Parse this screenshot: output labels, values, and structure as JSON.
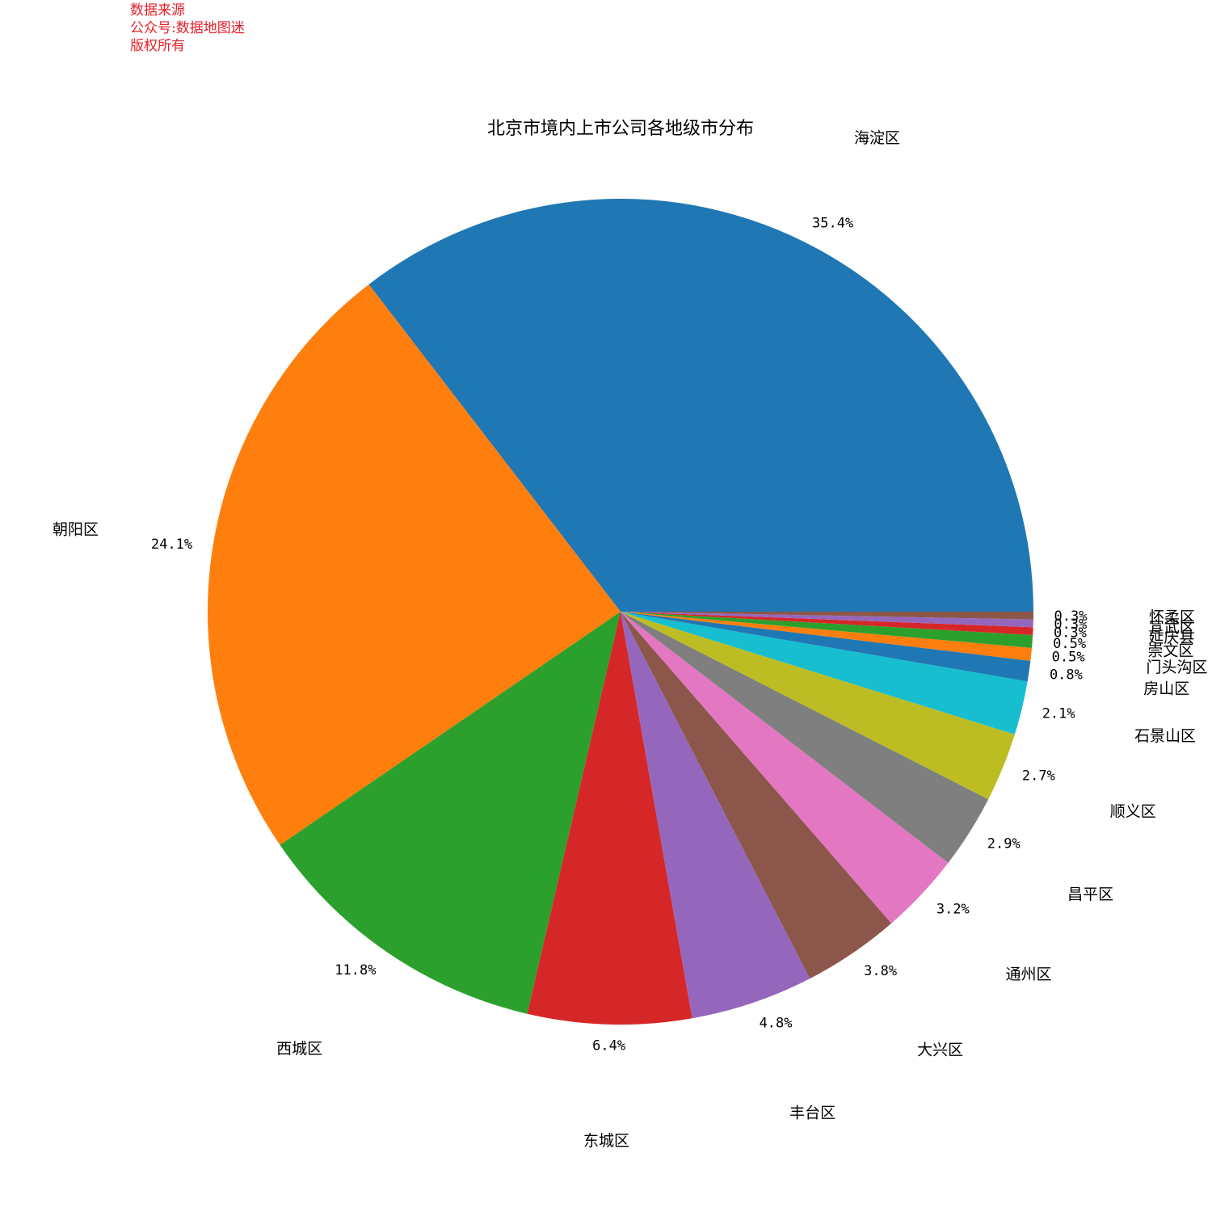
{
  "watermark": {
    "line1": "数据来源",
    "line2": "公众号:数据地图迷",
    "line3": "版权所有"
  },
  "chart_data": {
    "type": "pie",
    "title": "北京市境内上市公司各地级市分布",
    "start_angle_deg": 0,
    "direction": "counterclockwise",
    "categories": [
      "海淀区",
      "朝阳区",
      "西城区",
      "东城区",
      "丰台区",
      "大兴区",
      "通州区",
      "昌平区",
      "顺义区",
      "石景山区",
      "房山区",
      "门头沟区",
      "崇文区",
      "延庆县",
      "宣武区",
      "怀柔区"
    ],
    "values": [
      35.4,
      24.1,
      11.8,
      6.4,
      4.8,
      3.8,
      3.2,
      2.9,
      2.7,
      2.1,
      0.8,
      0.5,
      0.5,
      0.3,
      0.3,
      0.3
    ],
    "percent_labels": [
      "35.4%",
      "24.1%",
      "11.8%",
      "6.4%",
      "4.8%",
      "3.8%",
      "3.2%",
      "2.9%",
      "2.7%",
      "2.1%",
      "0.8%",
      "0.5%",
      "0.5%",
      "0.3%",
      "0.3%",
      "0.3%"
    ],
    "colors": [
      "#1f77b4",
      "#ff7f0e",
      "#2ca02c",
      "#d62728",
      "#9467bd",
      "#8c564b",
      "#e377c2",
      "#7f7f7f",
      "#bcbd22",
      "#17becf",
      "#1f77b4",
      "#ff7f0e",
      "#2ca02c",
      "#d62728",
      "#9467bd",
      "#8c564b"
    ]
  }
}
